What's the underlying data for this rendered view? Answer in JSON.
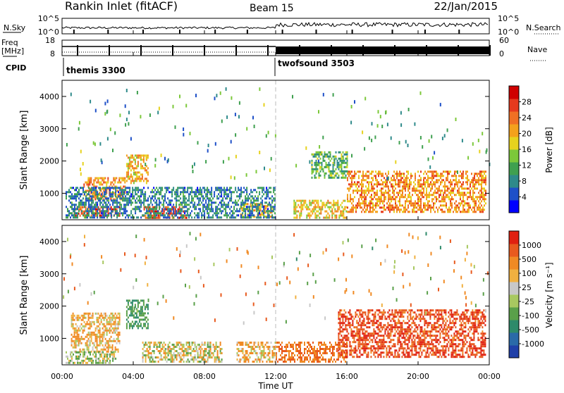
{
  "header": {
    "title": "Rankin Inlet (fitACF)",
    "beam": "Beam 15",
    "date": "22/Jan/2015"
  },
  "top_panels": {
    "nsky_label": "N.Sky",
    "nsky_ticks": [
      "10^5",
      "10^0"
    ],
    "nsearch_label": "N.Search",
    "nsearch_ticks": [
      "10^5",
      "10^0"
    ],
    "freq_label_line1": "Freq",
    "freq_label_line2": "[MHz]",
    "freq_ticks": [
      "18",
      "8"
    ],
    "nave_label": "Nave",
    "nave_ticks": [
      "60",
      "0"
    ],
    "cpid_label": "CPID",
    "cpid_modes": [
      {
        "name": "themis 3300",
        "start_ut": 0
      },
      {
        "name": "twofsound 3503",
        "start_ut": 12
      }
    ]
  },
  "panels": {
    "ylabel": "Slant Range [km]",
    "yticks": [
      "4000",
      "3000",
      "2000",
      "1000"
    ],
    "xlabel": "Time UT",
    "xticks": [
      "00:00",
      "04:00",
      "08:00",
      "12:00",
      "16:00",
      "20:00",
      "00:00"
    ]
  },
  "power_colorbar": {
    "label": "Power [dB]",
    "ticks": [
      "28",
      "24",
      "20",
      "16",
      "12",
      "8",
      "4"
    ],
    "colors": [
      "#0000ff",
      "#1e50c8",
      "#2e8a8a",
      "#3fa04f",
      "#7cc83a",
      "#e6d21e",
      "#f4a11c",
      "#f07024",
      "#e63a1e",
      "#d00000"
    ]
  },
  "velocity_colorbar": {
    "label": "Velocity [m s⁻¹]",
    "ticks": [
      "1000",
      "500",
      "100",
      "25",
      "-25",
      "-100",
      "-500",
      "-1000"
    ],
    "colors": [
      "#2040a8",
      "#2a6aa8",
      "#2e8a6a",
      "#5aa04a",
      "#a8c860",
      "#c8c8c8",
      "#f0b040",
      "#f08a24",
      "#e85a1e",
      "#e02010"
    ]
  },
  "chart_data": {
    "type": "heatmap",
    "x_units": "hours UT",
    "xlim": [
      0,
      24
    ],
    "ylim": [
      180,
      4500
    ],
    "power_range_db": [
      0,
      32
    ],
    "velocity_range": [
      -1000,
      1000
    ],
    "power_blobs": [
      {
        "x0": 0.5,
        "x1": 3.2,
        "y0": 300,
        "y1": 600,
        "v": 26
      },
      {
        "x0": 1.2,
        "x1": 3.5,
        "y0": 800,
        "y1": 1500,
        "v": 22
      },
      {
        "x0": 3.6,
        "x1": 4.8,
        "y0": 1300,
        "y1": 2200,
        "v": 20
      },
      {
        "x0": 4.5,
        "x1": 7.0,
        "y0": 250,
        "y1": 600,
        "v": 27
      },
      {
        "x0": 10.0,
        "x1": 11.8,
        "y0": 250,
        "y1": 700,
        "v": 20
      },
      {
        "x0": 13.0,
        "x1": 16.0,
        "y0": 250,
        "y1": 800,
        "v": 18
      },
      {
        "x0": 16.0,
        "x1": 23.8,
        "y0": 400,
        "y1": 1700,
        "v": 22
      },
      {
        "x0": 14.0,
        "x1": 16.0,
        "y0": 1500,
        "y1": 2300,
        "v": 12
      },
      {
        "x0": 0.2,
        "x1": 12.0,
        "y0": 250,
        "y1": 1200,
        "v": 8
      }
    ],
    "velocity_blobs": [
      {
        "x0": 0.5,
        "x1": 3.2,
        "y0": 600,
        "y1": 1800,
        "v": -100
      },
      {
        "x0": 3.6,
        "x1": 4.8,
        "y0": 1300,
        "y1": 2200,
        "v": 300
      },
      {
        "x0": 4.5,
        "x1": 9.0,
        "y0": 300,
        "y1": 900,
        "v": 0
      },
      {
        "x0": 9.8,
        "x1": 12.0,
        "y0": 250,
        "y1": 900,
        "v": -100
      },
      {
        "x0": 12.0,
        "x1": 16.0,
        "y0": 250,
        "y1": 900,
        "v": -300
      },
      {
        "x0": 15.5,
        "x1": 23.8,
        "y0": 400,
        "y1": 1900,
        "v": -450
      },
      {
        "x0": 0.2,
        "x1": 3.0,
        "y0": 250,
        "y1": 600,
        "v": 100
      }
    ]
  }
}
